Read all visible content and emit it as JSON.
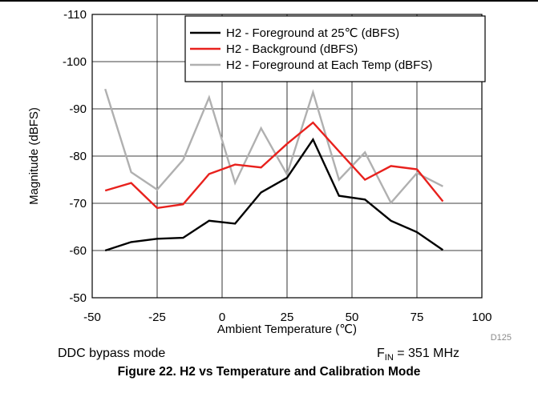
{
  "chart_data": {
    "type": "line",
    "xlabel": "Ambient Temperature (℃)",
    "ylabel": "Magnitude (dBFS)",
    "xlim": [
      -50,
      100
    ],
    "ylim": [
      -50,
      -110
    ],
    "x_ticks": [
      "-50",
      "-25",
      "0",
      "25",
      "50",
      "75",
      "100"
    ],
    "y_ticks": [
      "-110",
      "-100",
      "-90",
      "-80",
      "-70",
      "-60",
      "-50"
    ],
    "grid": true,
    "legend_position": "top-right",
    "series": [
      {
        "name": "H2 - Foreground at 25℃ (dBFS)",
        "color": "#000000",
        "x": [
          -45,
          -35,
          -25,
          -15,
          -5,
          5,
          15,
          25,
          35,
          45,
          55,
          65,
          75,
          85
        ],
        "values": [
          -60.0,
          -61.8,
          -62.5,
          -62.7,
          -66.3,
          -65.7,
          -72.3,
          -75.4,
          -83.5,
          -71.6,
          -70.8,
          -66.3,
          -63.9,
          -60.1
        ]
      },
      {
        "name": "H2 - Background (dBFS)",
        "color": "#e8211d",
        "x": [
          -45,
          -35,
          -25,
          -15,
          -5,
          5,
          15,
          25,
          35,
          45,
          55,
          65,
          75,
          85
        ],
        "values": [
          -72.7,
          -74.3,
          -69.0,
          -69.8,
          -76.2,
          -78.2,
          -77.6,
          -82.6,
          -87.1,
          -81.0,
          -75.0,
          -77.9,
          -77.2,
          -70.4
        ]
      },
      {
        "name": "H2 - Foreground at Each Temp (dBFS)",
        "color": "#b0b0b0",
        "x": [
          -45,
          -35,
          -25,
          -15,
          -5,
          5,
          15,
          25,
          35,
          45,
          55,
          65,
          75,
          85
        ],
        "values": [
          -94.2,
          -76.6,
          -72.9,
          -79.2,
          -92.4,
          -74.3,
          -85.9,
          -76.1,
          -93.5,
          -75.0,
          -80.8,
          -70.1,
          -76.4,
          -73.6
        ]
      }
    ]
  },
  "figure_id": "D125",
  "note_left": "DDC bypass mode",
  "note_right": {
    "base": "F",
    "sub": "IN",
    "rest": " = 351 MHz"
  },
  "caption": "Figure 22. H2 vs Temperature and Calibration Mode"
}
